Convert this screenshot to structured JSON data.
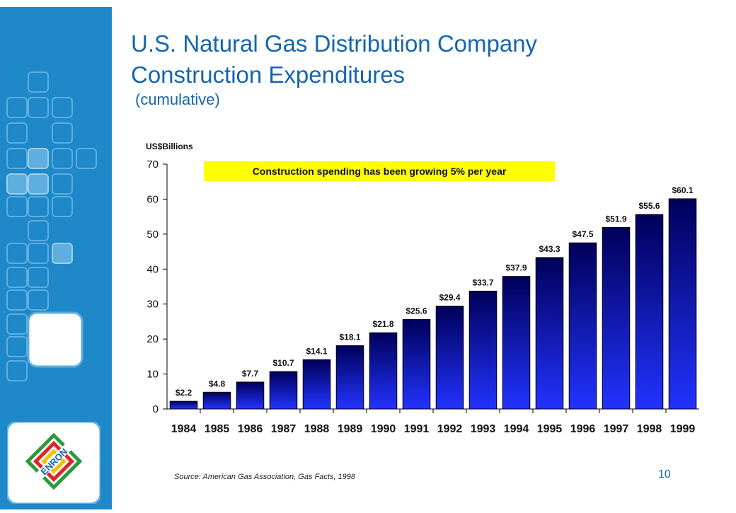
{
  "slide": {
    "title_line1": "U.S. Natural Gas Distribution Company",
    "title_line2": "Construction Expenditures",
    "subtitle": "(cumulative)",
    "units_label": "US$Billions",
    "callout": "Construction spending has been growing 5% per year",
    "source": "Source: American Gas Association, Gas Facts, 1998",
    "page_number": "10",
    "logo_text": "ENRON"
  },
  "colors": {
    "sidebar": "#1e88c8",
    "title": "#1565b0",
    "bar_top": "#00005a",
    "bar_bottom": "#2233ff",
    "callout_bg": "#ffff00"
  },
  "chart_data": {
    "type": "bar",
    "title": "U.S. Natural Gas Distribution Company Construction Expenditures",
    "subtitle": "(cumulative)",
    "ylabel": "US$Billions",
    "ylim": [
      0,
      70
    ],
    "yticks": [
      0,
      10,
      20,
      30,
      40,
      50,
      60,
      70
    ],
    "categories": [
      "1984",
      "1985",
      "1986",
      "1987",
      "1988",
      "1989",
      "1990",
      "1991",
      "1992",
      "1993",
      "1994",
      "1995",
      "1996",
      "1997",
      "1998",
      "1999"
    ],
    "values": [
      2.2,
      4.8,
      7.7,
      10.7,
      14.1,
      18.1,
      21.8,
      25.6,
      29.4,
      33.7,
      37.9,
      43.3,
      47.5,
      51.9,
      55.6,
      60.1
    ],
    "labels": [
      "$2.2",
      "$4.8",
      "$7.7",
      "$10.7",
      "$14.1",
      "$18.1",
      "$21.8",
      "$25.6",
      "$29.4",
      "$33.7",
      "$37.9",
      "$43.3",
      "$47.5",
      "$51.9",
      "$55.6",
      "$60.1"
    ],
    "grid": false,
    "legend": "none"
  }
}
